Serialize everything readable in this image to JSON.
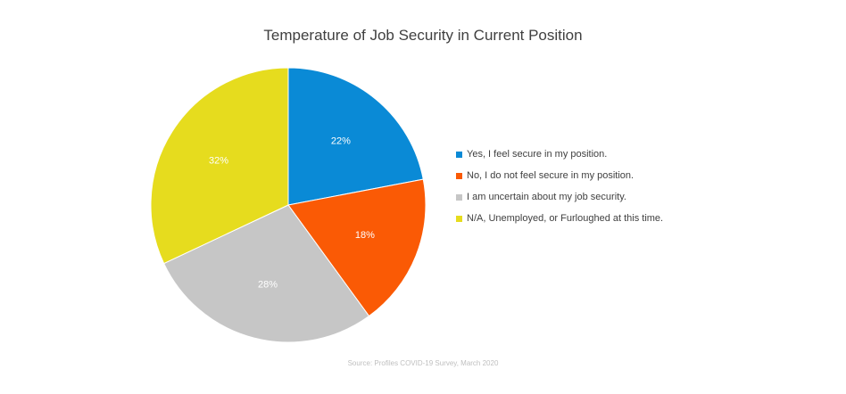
{
  "chart_data": {
    "type": "pie",
    "title": "Temperature of Job Security in Current Position",
    "categories": [
      "Yes, I feel secure in my position.",
      "No, I do not feel secure in my position.",
      "I am uncertain about my job security.",
      "N/A, Unemployed, or Furloughed at this time."
    ],
    "values": [
      22,
      18,
      28,
      32
    ],
    "value_labels": [
      "22%",
      "18%",
      "28%",
      "32%"
    ],
    "colors": [
      "#0A8AD6",
      "#FA5A05",
      "#C6C6C6",
      "#E6DC1E"
    ],
    "legend_position": "right",
    "source": "Source: Profiles COVID-19 Survey, March 2020"
  }
}
